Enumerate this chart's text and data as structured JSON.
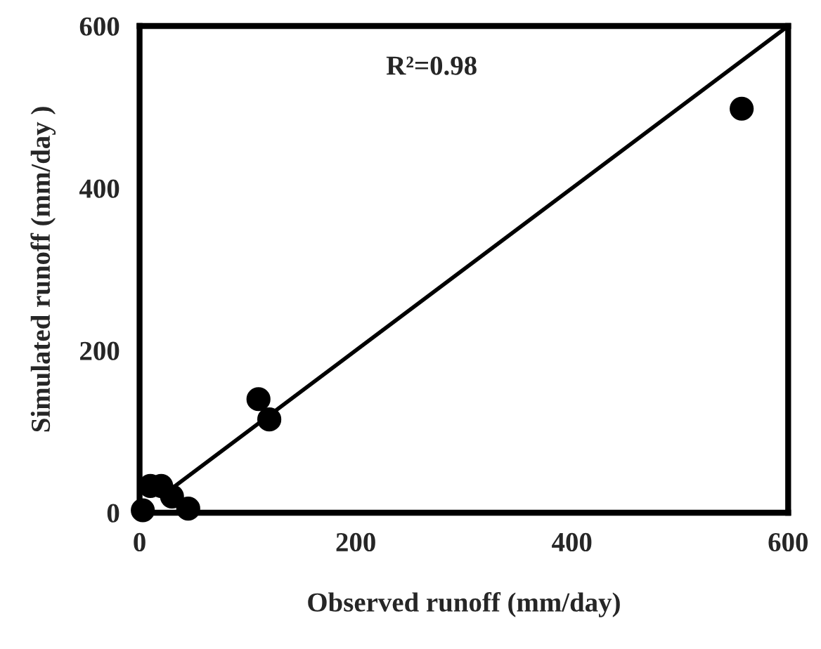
{
  "chart_data": {
    "type": "scatter",
    "xlabel": "Observed runoff (mm/day)",
    "ylabel": "Simulated runoff (mm/day )",
    "annotations": [
      "R²=0.98"
    ],
    "xlim": [
      0,
      600
    ],
    "ylim": [
      0,
      600
    ],
    "xticks": [
      0,
      200,
      400,
      600
    ],
    "yticks": [
      0,
      200,
      400,
      600
    ],
    "grid": false,
    "series": [
      {
        "type": "scatter",
        "color": "#000000",
        "marker": "circle",
        "x": [
          557,
          110,
          120,
          45,
          30,
          20,
          10,
          3
        ],
        "values": [
          498,
          140,
          115,
          5,
          20,
          33,
          33,
          3
        ]
      },
      {
        "type": "line",
        "color": "#000000",
        "line_style": "solid",
        "x": [
          20,
          600
        ],
        "values": [
          20,
          600
        ]
      }
    ]
  }
}
